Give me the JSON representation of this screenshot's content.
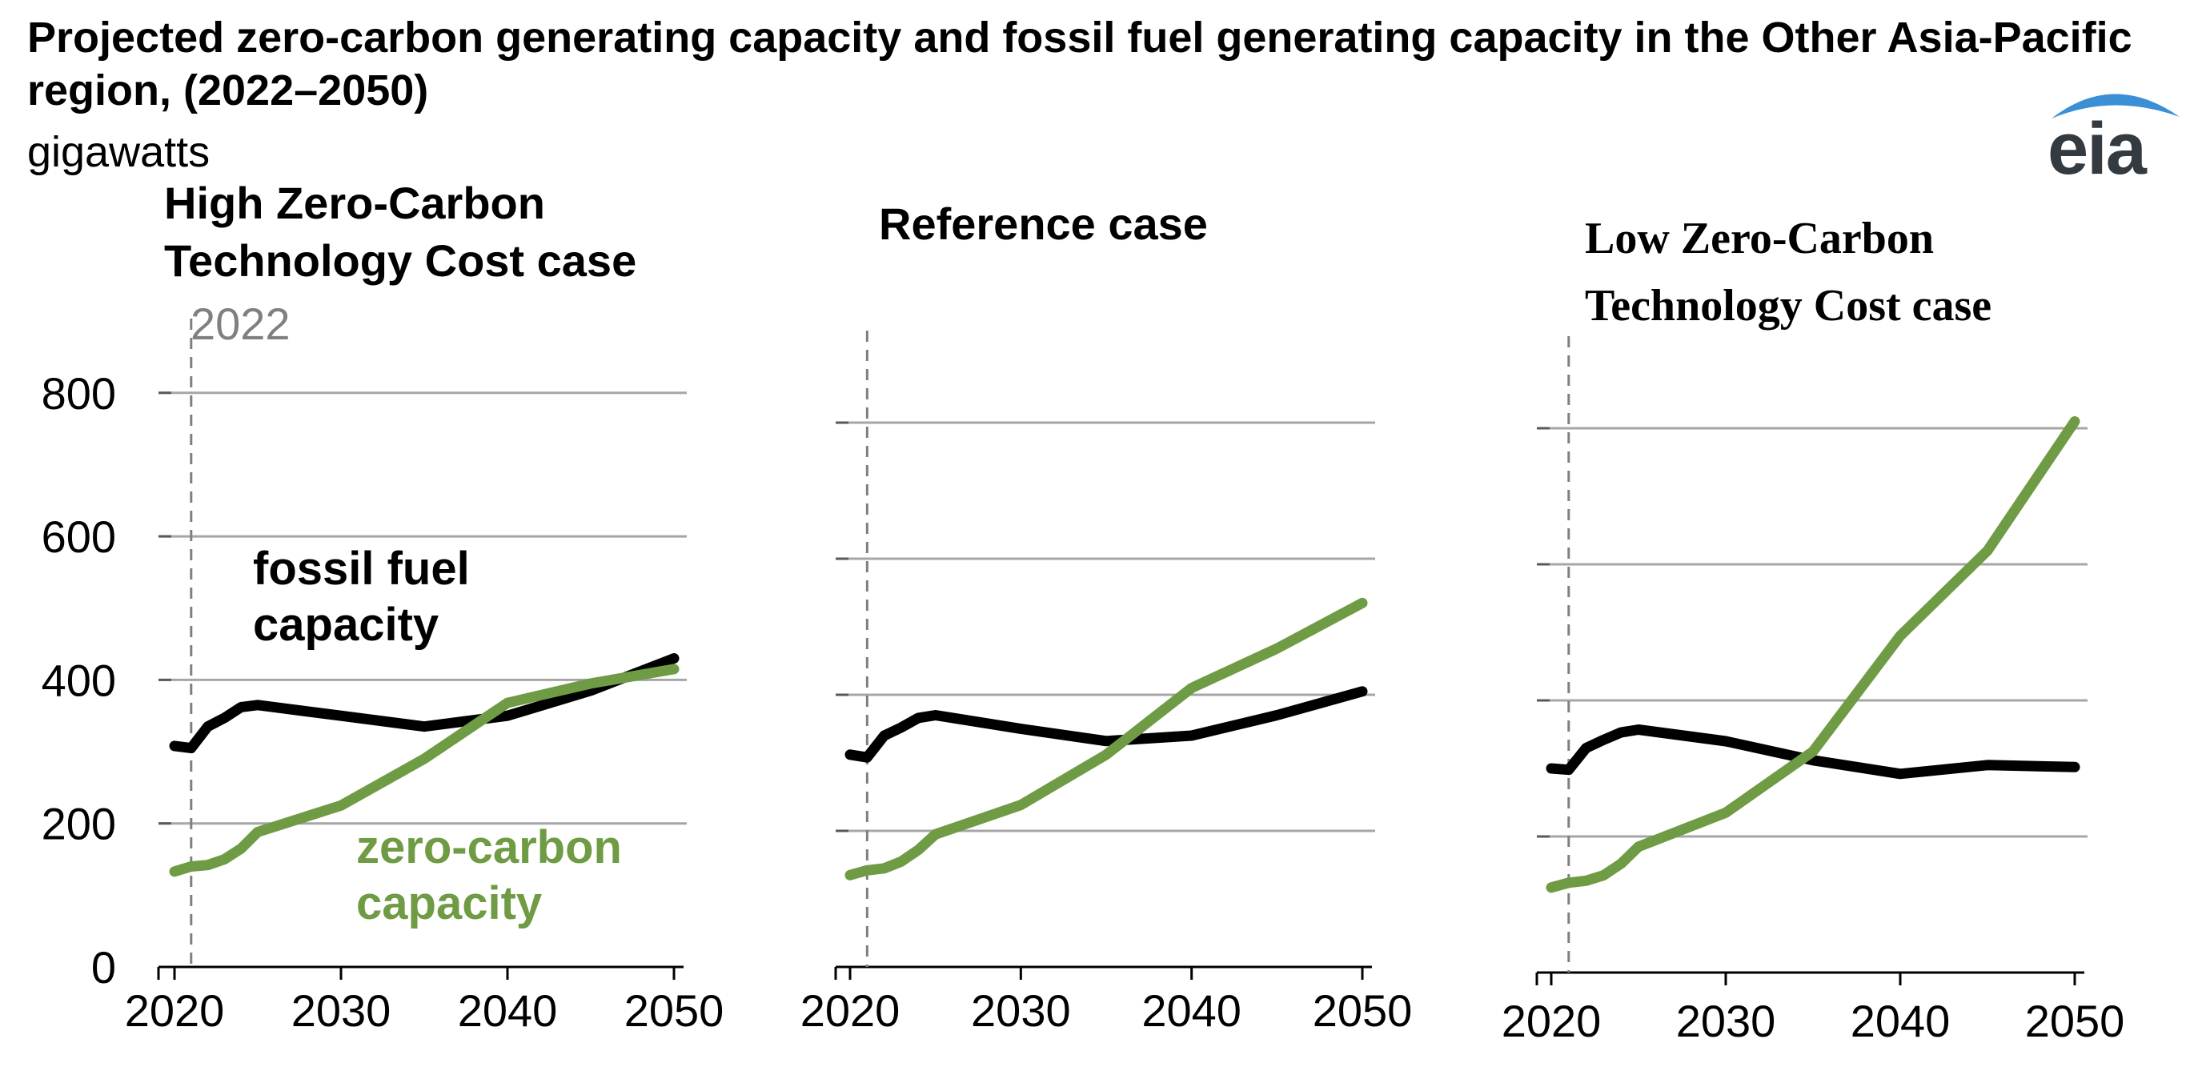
{
  "header": {
    "title": "Projected zero-carbon generating capacity and fossil fuel generating capacity in the Other Asia-Pacific region, (2022–2050)",
    "units": "gigawatts",
    "logo_text": "eia"
  },
  "colors": {
    "fossil": "#000000",
    "zero_carbon": "#6e9b43",
    "grid": "#a6a6a6",
    "marker": "#7f7f7f"
  },
  "chart_data": [
    {
      "type": "line",
      "title": "High Zero-Carbon Technology Cost case",
      "title_lines": [
        "High Zero-Carbon",
        "Technology Cost case"
      ],
      "marker_label": "2022",
      "marker_x": 2021,
      "xlim": [
        2020,
        2050
      ],
      "ylim": [
        0,
        870
      ],
      "x_ticks": [
        "2020",
        "2030",
        "2040",
        "2050"
      ],
      "y_ticks": [
        "0",
        "200",
        "400",
        "600",
        "800"
      ],
      "y_grid": [
        200,
        400,
        600,
        800
      ],
      "series": [
        {
          "name": "fossil fuel capacity",
          "label_lines": [
            "fossil fuel",
            "capacity"
          ],
          "color": "#000000",
          "x": [
            2020,
            2021,
            2022,
            2023,
            2024,
            2025,
            2030,
            2035,
            2040,
            2045,
            2050
          ],
          "y": [
            308,
            305,
            335,
            347,
            362,
            365,
            350,
            335,
            350,
            385,
            430
          ]
        },
        {
          "name": "zero-carbon capacity",
          "label_lines": [
            "zero-carbon",
            "capacity"
          ],
          "color": "#6e9b43",
          "x": [
            2020,
            2021,
            2022,
            2023,
            2024,
            2025,
            2030,
            2035,
            2040,
            2045,
            2050
          ],
          "y": [
            133,
            140,
            142,
            150,
            165,
            188,
            225,
            290,
            368,
            395,
            415
          ]
        }
      ]
    },
    {
      "type": "line",
      "title": "Reference case",
      "title_lines": [
        "Reference case"
      ],
      "marker_x": 2021,
      "xlim": [
        2020,
        2050
      ],
      "ylim": [
        0,
        900
      ],
      "x_ticks": [
        "2020",
        "2030",
        "2040",
        "2050"
      ],
      "y_grid": [
        200,
        400,
        600,
        800
      ],
      "series": [
        {
          "color": "#000000",
          "x": [
            2020,
            2021,
            2022,
            2023,
            2024,
            2025,
            2030,
            2035,
            2040,
            2045,
            2050
          ],
          "y": [
            312,
            308,
            340,
            352,
            366,
            370,
            350,
            332,
            340,
            370,
            405
          ]
        },
        {
          "color": "#6e9b43",
          "x": [
            2020,
            2021,
            2022,
            2023,
            2024,
            2025,
            2030,
            2035,
            2040,
            2045,
            2050
          ],
          "y": [
            135,
            142,
            145,
            155,
            172,
            195,
            238,
            312,
            410,
            468,
            535
          ]
        }
      ]
    },
    {
      "type": "line",
      "title": "Low Zero-Carbon Technology Cost case",
      "title_lines": [
        "Low Zero-Carbon",
        "Technology Cost case"
      ],
      "marker_x": 2021,
      "xlim": [
        2020,
        2050
      ],
      "ylim": [
        0,
        900
      ],
      "x_ticks": [
        "2020",
        "2030",
        "2040",
        "2050"
      ],
      "y_grid": [
        200,
        400,
        600,
        800
      ],
      "series": [
        {
          "color": "#000000",
          "x": [
            2020,
            2021,
            2022,
            2023,
            2024,
            2025,
            2030,
            2035,
            2040,
            2045,
            2050
          ],
          "y": [
            300,
            298,
            330,
            342,
            353,
            357,
            340,
            312,
            292,
            305,
            302
          ]
        },
        {
          "color": "#6e9b43",
          "x": [
            2020,
            2021,
            2022,
            2023,
            2024,
            2025,
            2030,
            2035,
            2040,
            2045,
            2050
          ],
          "y": [
            125,
            132,
            135,
            143,
            160,
            185,
            235,
            325,
            495,
            620,
            810
          ]
        }
      ]
    }
  ]
}
